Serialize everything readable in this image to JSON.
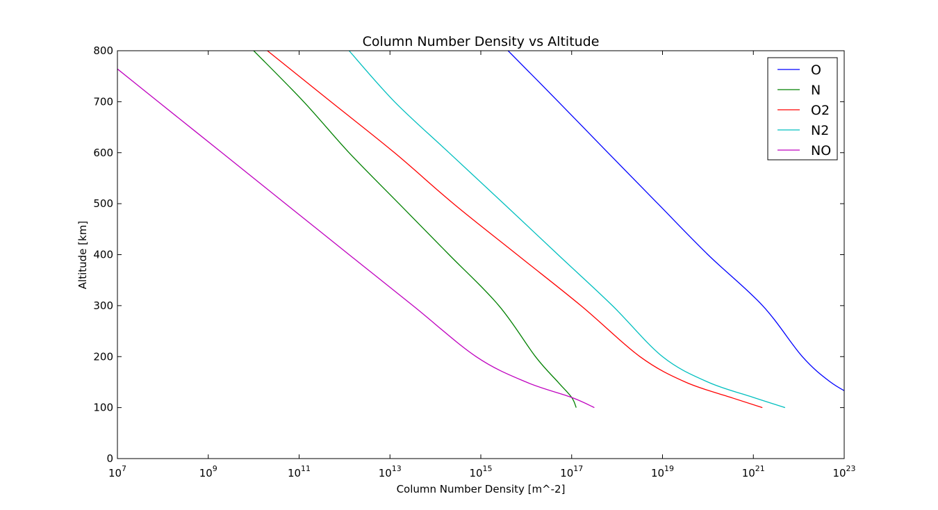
{
  "chart_data": {
    "type": "line",
    "title": "Column Number Density vs Altitude",
    "xlabel": "Column Number Density [m^-2]",
    "ylabel": "Altitude [km]",
    "xscale": "log",
    "xlim": [
      10000000.0,
      1e+23
    ],
    "ylim": [
      0,
      800
    ],
    "x_ticks": [
      {
        "base": "10",
        "exp": "7"
      },
      {
        "base": "10",
        "exp": "9"
      },
      {
        "base": "10",
        "exp": "11"
      },
      {
        "base": "10",
        "exp": "13"
      },
      {
        "base": "10",
        "exp": "15"
      },
      {
        "base": "10",
        "exp": "17"
      },
      {
        "base": "10",
        "exp": "19"
      },
      {
        "base": "10",
        "exp": "21"
      },
      {
        "base": "10",
        "exp": "23"
      }
    ],
    "y_ticks": [
      "0",
      "100",
      "200",
      "300",
      "400",
      "500",
      "600",
      "700",
      "800"
    ],
    "grid": false,
    "legend_position": "top-right",
    "series": [
      {
        "name": "O",
        "color": "#0000ff",
        "points": [
          [
            3980000000000000.0,
            800
          ],
          [
            5.1e+16,
            700
          ],
          [
            6.3e+17,
            600
          ],
          [
            7.9e+18,
            500
          ],
          [
            1e+20,
            400
          ],
          [
            1.6e+21,
            300
          ],
          [
            1.2e+22,
            200
          ],
          [
            5e+22,
            150
          ],
          [
            1.8e+23,
            120
          ],
          [
            3.2e+23,
            100
          ]
        ]
      },
      {
        "name": "N",
        "color": "#008000",
        "points": [
          [
            10000000000.0,
            800
          ],
          [
            126000000000.0,
            700
          ],
          [
            1260000000000.0,
            600
          ],
          [
            15800000000000.0,
            500
          ],
          [
            200000000000000.0,
            400
          ],
          [
            2500000000000000.0,
            300
          ],
          [
            1.6e+16,
            200
          ],
          [
            5e+16,
            150
          ],
          [
            1e+17,
            120
          ],
          [
            1.26e+17,
            100
          ]
        ]
      },
      {
        "name": "O2",
        "color": "#ff0000",
        "points": [
          [
            20000000000.0,
            800
          ],
          [
            500000000000.0,
            700
          ],
          [
            12600000000000.0,
            600
          ],
          [
            250000000000000.0,
            500
          ],
          [
            6300000000000000.0,
            400
          ],
          [
            1.6e+17,
            300
          ],
          [
            3.2e+18,
            200
          ],
          [
            3.2e+19,
            150
          ],
          [
            3.2e+20,
            120
          ],
          [
            1.58e+21,
            100
          ]
        ]
      },
      {
        "name": "N2",
        "color": "#00bfbf",
        "points": [
          [
            1260000000000.0,
            800
          ],
          [
            12600000000000.0,
            700
          ],
          [
            200000000000000.0,
            600
          ],
          [
            3200000000000000.0,
            500
          ],
          [
            5e+16,
            400
          ],
          [
            7.9e+17,
            300
          ],
          [
            1e+19,
            200
          ],
          [
            1e+20,
            150
          ],
          [
            1e+21,
            120
          ],
          [
            5e+21,
            100
          ]
        ]
      },
      {
        "name": "NO",
        "color": "#bf00bf",
        "points": [
          [
            3160000.0,
            800
          ],
          [
            79000000.0,
            700
          ],
          [
            2000000000.0,
            600
          ],
          [
            50000000000.0,
            500
          ],
          [
            1260000000000.0,
            400
          ],
          [
            32000000000000.0,
            300
          ],
          [
            790000000000000.0,
            200
          ],
          [
            1e+16,
            150
          ],
          [
            1e+17,
            120
          ],
          [
            3.16e+17,
            100
          ]
        ]
      }
    ]
  }
}
